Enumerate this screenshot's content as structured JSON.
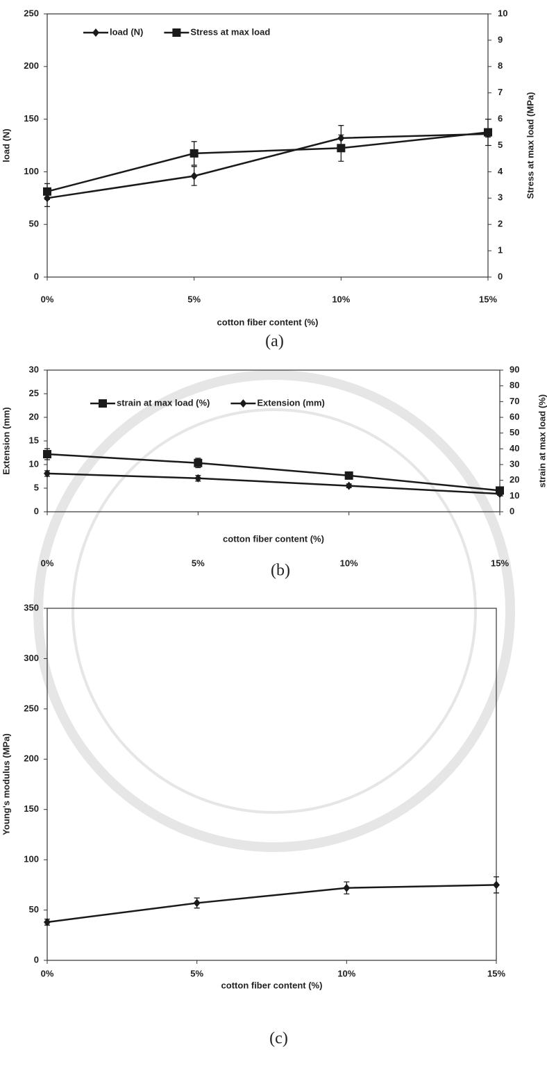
{
  "chart_data": [
    {
      "type": "line",
      "caption": "(a)",
      "xlabel": "cotton fiber content (%)",
      "ylabel": "load (N)",
      "y2label": "Stress at max load (MPa)",
      "categories": [
        "0%",
        "5%",
        "10%",
        "15%"
      ],
      "ylim": [
        0,
        250
      ],
      "yticks": [
        0,
        50,
        100,
        150,
        200,
        250
      ],
      "y2lim": [
        0,
        10
      ],
      "y2ticks": [
        0,
        1,
        2,
        3,
        4,
        5,
        6,
        7,
        8,
        9,
        10
      ],
      "legend": "upper left",
      "series": [
        {
          "name": "load (N)",
          "color": "#1a1a1a",
          "marker": "diamond",
          "values": [
            75,
            96,
            132,
            136
          ],
          "errors": [
            8,
            9,
            12,
            3
          ]
        },
        {
          "name": "Stress at  max load",
          "color": "#1a1a1a",
          "marker": "square",
          "axis": "y2",
          "values": [
            3.25,
            4.7,
            4.9,
            5.5
          ],
          "errors": [
            0.3,
            0.45,
            0.5,
            0.5
          ]
        }
      ]
    },
    {
      "type": "line",
      "caption": "(b)",
      "xlabel": "cotton fiber content (%)",
      "ylabel": "Extension  (mm)",
      "y2label": "strain  at  max  load (%)",
      "categories": [
        "0%",
        "5%",
        "10%",
        "15%"
      ],
      "ylim": [
        0,
        30
      ],
      "yticks": [
        0,
        5,
        10,
        15,
        20,
        25,
        30
      ],
      "y2lim": [
        0,
        90
      ],
      "y2ticks": [
        0,
        10,
        20,
        30,
        40,
        50,
        60,
        70,
        80,
        90
      ],
      "legend": "upper left",
      "series": [
        {
          "name": "strain  at  max  load (%)",
          "color": "#1a1a1a",
          "marker": "square",
          "axis": "y2",
          "values": [
            36.6,
            31,
            23,
            13.5
          ],
          "errors": [
            3.5,
            3,
            2,
            1
          ]
        },
        {
          "name": "Extension (mm)",
          "color": "#1a1a1a",
          "marker": "diamond",
          "values": [
            8.1,
            7.1,
            5.5,
            3.8
          ],
          "errors": [
            0.6,
            0.6,
            0.4,
            0.3
          ]
        }
      ]
    },
    {
      "type": "line",
      "caption": "(c)",
      "xlabel": "cotton fiber content (%)",
      "ylabel": "Young's modulus (MPa)",
      "categories": [
        "0%",
        "5%",
        "10%",
        "15%"
      ],
      "ylim": [
        0,
        350
      ],
      "yticks": [
        0,
        50,
        100,
        150,
        200,
        250,
        300,
        350
      ],
      "series": [
        {
          "color": "#1a1a1a",
          "marker": "diamond",
          "values": [
            38,
            57,
            72,
            75
          ],
          "errors": [
            3,
            5,
            6,
            8
          ]
        }
      ]
    }
  ]
}
